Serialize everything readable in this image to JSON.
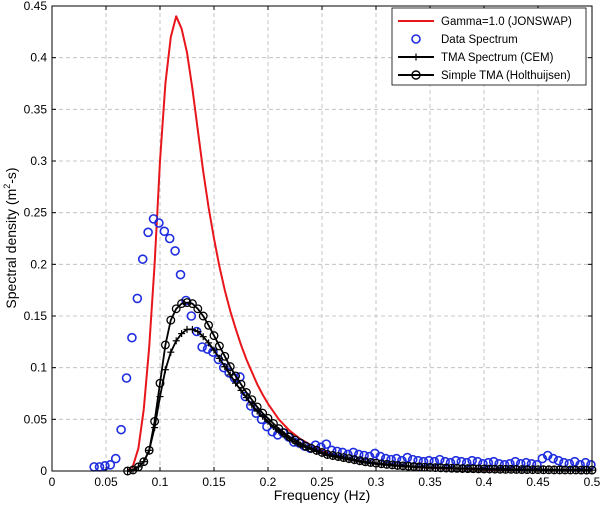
{
  "chart_data": {
    "type": "line",
    "title": "",
    "xlabel": "Frequency (Hz)",
    "ylabel_prefix": "Spectral density (m",
    "ylabel_sup": "2",
    "ylabel_suffix": "-s)",
    "xlim": [
      0,
      0.5
    ],
    "ylim": [
      0,
      0.45
    ],
    "grid": true,
    "grid_style": "dashed",
    "legend_position": "top-right",
    "x_ticks": [
      0,
      0.05,
      0.1,
      0.15,
      0.2,
      0.25,
      0.3,
      0.35,
      0.4,
      0.45,
      0.5
    ],
    "x_tick_labels": [
      "0",
      "0.05",
      "0.1",
      "0.15",
      "0.2",
      "0.25",
      "0.3",
      "0.35",
      "0.4",
      "0.45",
      "0.5"
    ],
    "y_ticks": [
      0,
      0.05,
      0.1,
      0.15,
      0.2,
      0.25,
      0.3,
      0.35,
      0.4,
      0.45
    ],
    "y_tick_labels": [
      "0",
      "0.05",
      "0.1",
      "0.15",
      "0.2",
      "0.25",
      "0.3",
      "0.35",
      "0.4",
      "0.45"
    ],
    "series": [
      {
        "name": "Gamma=1.0 (JONSWAP)",
        "style": "line",
        "color": "#e8161b",
        "x": [
          0.07,
          0.075,
          0.08,
          0.085,
          0.09,
          0.095,
          0.1,
          0.105,
          0.11,
          0.115,
          0.12,
          0.125,
          0.13,
          0.135,
          0.14,
          0.145,
          0.15,
          0.155,
          0.16,
          0.165,
          0.17,
          0.175,
          0.18,
          0.185,
          0.19,
          0.195,
          0.2,
          0.21,
          0.22,
          0.23,
          0.24,
          0.25,
          0.26,
          0.27,
          0.28,
          0.3,
          0.32,
          0.35,
          0.4,
          0.45,
          0.5
        ],
        "y": [
          0.0,
          0.005,
          0.022,
          0.06,
          0.12,
          0.2,
          0.3,
          0.375,
          0.42,
          0.44,
          0.428,
          0.405,
          0.37,
          0.33,
          0.29,
          0.255,
          0.225,
          0.198,
          0.175,
          0.155,
          0.138,
          0.122,
          0.108,
          0.096,
          0.084,
          0.074,
          0.065,
          0.05,
          0.039,
          0.031,
          0.025,
          0.02,
          0.016,
          0.013,
          0.01,
          0.007,
          0.005,
          0.003,
          0.0015,
          0.0008,
          0.0005
        ]
      },
      {
        "name": "Data Spectrum",
        "style": "circles",
        "color": "#1f2de0",
        "x": [
          0.039,
          0.044,
          0.049,
          0.054,
          0.059,
          0.064,
          0.069,
          0.074,
          0.079,
          0.084,
          0.089,
          0.094,
          0.099,
          0.104,
          0.109,
          0.114,
          0.119,
          0.124,
          0.129,
          0.134,
          0.139,
          0.144,
          0.149,
          0.154,
          0.159,
          0.164,
          0.169,
          0.174,
          0.179,
          0.184,
          0.189,
          0.194,
          0.199,
          0.204,
          0.209,
          0.214,
          0.219,
          0.224,
          0.229,
          0.234,
          0.239,
          0.244,
          0.249,
          0.254,
          0.259,
          0.264,
          0.269,
          0.274,
          0.279,
          0.284,
          0.289,
          0.294,
          0.299,
          0.304,
          0.309,
          0.314,
          0.319,
          0.324,
          0.329,
          0.334,
          0.339,
          0.344,
          0.349,
          0.354,
          0.359,
          0.364,
          0.369,
          0.374,
          0.379,
          0.384,
          0.389,
          0.394,
          0.399,
          0.404,
          0.409,
          0.414,
          0.419,
          0.424,
          0.429,
          0.434,
          0.439,
          0.444,
          0.449,
          0.454,
          0.459,
          0.464,
          0.469,
          0.474,
          0.479,
          0.484,
          0.489,
          0.494,
          0.499
        ],
        "y": [
          0.004,
          0.004,
          0.005,
          0.006,
          0.012,
          0.04,
          0.09,
          0.129,
          0.167,
          0.205,
          0.231,
          0.244,
          0.24,
          0.232,
          0.225,
          0.213,
          0.19,
          0.165,
          0.15,
          0.135,
          0.12,
          0.118,
          0.115,
          0.108,
          0.1,
          0.095,
          0.09,
          0.091,
          0.072,
          0.063,
          0.056,
          0.05,
          0.043,
          0.038,
          0.035,
          0.037,
          0.033,
          0.028,
          0.027,
          0.024,
          0.022,
          0.025,
          0.023,
          0.026,
          0.02,
          0.019,
          0.018,
          0.016,
          0.018,
          0.016,
          0.015,
          0.014,
          0.017,
          0.014,
          0.012,
          0.011,
          0.012,
          0.01,
          0.013,
          0.011,
          0.01,
          0.009,
          0.01,
          0.009,
          0.011,
          0.009,
          0.008,
          0.01,
          0.009,
          0.008,
          0.01,
          0.009,
          0.007,
          0.008,
          0.009,
          0.007,
          0.006,
          0.007,
          0.009,
          0.007,
          0.008,
          0.007,
          0.006,
          0.012,
          0.015,
          0.012,
          0.01,
          0.008,
          0.007,
          0.009,
          0.006,
          0.008,
          0.006
        ]
      },
      {
        "name": "TMA Spectrum (CEM)",
        "style": "line-plus",
        "color": "#000000",
        "x": [
          0.07,
          0.075,
          0.08,
          0.085,
          0.09,
          0.095,
          0.1,
          0.105,
          0.11,
          0.115,
          0.12,
          0.125,
          0.13,
          0.135,
          0.14,
          0.145,
          0.15,
          0.155,
          0.16,
          0.165,
          0.17,
          0.175,
          0.18,
          0.185,
          0.19,
          0.195,
          0.2,
          0.205,
          0.21,
          0.215,
          0.22,
          0.225,
          0.23,
          0.235,
          0.24,
          0.245,
          0.25,
          0.255,
          0.26,
          0.265,
          0.27,
          0.275,
          0.28,
          0.285,
          0.29,
          0.295,
          0.3,
          0.305,
          0.31,
          0.315,
          0.32,
          0.325,
          0.33,
          0.335,
          0.34,
          0.345,
          0.35,
          0.355,
          0.36,
          0.365,
          0.37,
          0.375,
          0.38,
          0.385,
          0.39,
          0.395,
          0.4,
          0.405,
          0.41,
          0.415,
          0.42,
          0.425,
          0.43,
          0.435,
          0.44,
          0.445,
          0.45,
          0.455,
          0.46,
          0.465,
          0.47,
          0.475,
          0.48,
          0.485,
          0.49,
          0.495,
          0.5
        ],
        "y": [
          0.0,
          0.001,
          0.004,
          0.009,
          0.02,
          0.042,
          0.072,
          0.098,
          0.115,
          0.126,
          0.133,
          0.137,
          0.137,
          0.135,
          0.13,
          0.124,
          0.117,
          0.109,
          0.101,
          0.093,
          0.085,
          0.078,
          0.071,
          0.064,
          0.058,
          0.053,
          0.048,
          0.043,
          0.039,
          0.035,
          0.031,
          0.028,
          0.025,
          0.023,
          0.021,
          0.019,
          0.017,
          0.015,
          0.014,
          0.013,
          0.012,
          0.011,
          0.01,
          0.009,
          0.008,
          0.0075,
          0.007,
          0.0065,
          0.006,
          0.0055,
          0.005,
          0.0047,
          0.0044,
          0.0041,
          0.0038,
          0.0036,
          0.0034,
          0.0032,
          0.003,
          0.0028,
          0.0027,
          0.0025,
          0.0024,
          0.0023,
          0.0022,
          0.0021,
          0.002,
          0.0019,
          0.0018,
          0.0017,
          0.0016,
          0.0015,
          0.0015,
          0.0014,
          0.0013,
          0.0013,
          0.0012,
          0.0012,
          0.0011,
          0.0011,
          0.001,
          0.001,
          0.0009,
          0.0009,
          0.0009,
          0.0008,
          0.0008
        ]
      },
      {
        "name": "Simple TMA (Holthuijsen)",
        "style": "line-circles",
        "color": "#000000",
        "x": [
          0.07,
          0.075,
          0.08,
          0.085,
          0.09,
          0.095,
          0.1,
          0.105,
          0.11,
          0.115,
          0.12,
          0.125,
          0.13,
          0.135,
          0.14,
          0.145,
          0.15,
          0.155,
          0.16,
          0.165,
          0.17,
          0.175,
          0.18,
          0.185,
          0.19,
          0.195,
          0.2,
          0.205,
          0.21,
          0.215,
          0.22,
          0.225,
          0.23,
          0.235,
          0.24,
          0.245,
          0.25,
          0.255,
          0.26,
          0.265,
          0.27,
          0.275,
          0.28,
          0.285,
          0.29,
          0.295,
          0.3,
          0.305,
          0.31,
          0.315,
          0.32,
          0.325,
          0.33,
          0.335,
          0.34,
          0.345,
          0.35,
          0.355,
          0.36,
          0.365,
          0.37,
          0.375,
          0.38,
          0.385,
          0.39,
          0.395,
          0.4,
          0.405,
          0.41,
          0.415,
          0.42,
          0.425,
          0.43,
          0.435,
          0.44,
          0.445,
          0.45,
          0.455,
          0.46,
          0.465,
          0.47,
          0.475,
          0.48,
          0.485,
          0.49,
          0.495,
          0.5
        ],
        "y": [
          0.0,
          0.001,
          0.004,
          0.009,
          0.02,
          0.048,
          0.085,
          0.122,
          0.146,
          0.157,
          0.162,
          0.163,
          0.162,
          0.157,
          0.15,
          0.141,
          0.131,
          0.121,
          0.111,
          0.101,
          0.092,
          0.084,
          0.076,
          0.069,
          0.062,
          0.056,
          0.051,
          0.046,
          0.041,
          0.037,
          0.033,
          0.03,
          0.027,
          0.024,
          0.022,
          0.02,
          0.018,
          0.016,
          0.015,
          0.014,
          0.013,
          0.012,
          0.011,
          0.01,
          0.009,
          0.0083,
          0.0076,
          0.007,
          0.0064,
          0.0059,
          0.0054,
          0.005,
          0.0046,
          0.0043,
          0.004,
          0.0037,
          0.0035,
          0.0033,
          0.0031,
          0.0029,
          0.0027,
          0.0026,
          0.0024,
          0.0023,
          0.0022,
          0.0021,
          0.002,
          0.0019,
          0.0018,
          0.0017,
          0.0016,
          0.0016,
          0.0015,
          0.0014,
          0.0014,
          0.0013,
          0.0013,
          0.0012,
          0.0012,
          0.0011,
          0.0011,
          0.001,
          0.001,
          0.001,
          0.0009,
          0.0009,
          0.0009
        ]
      }
    ]
  }
}
